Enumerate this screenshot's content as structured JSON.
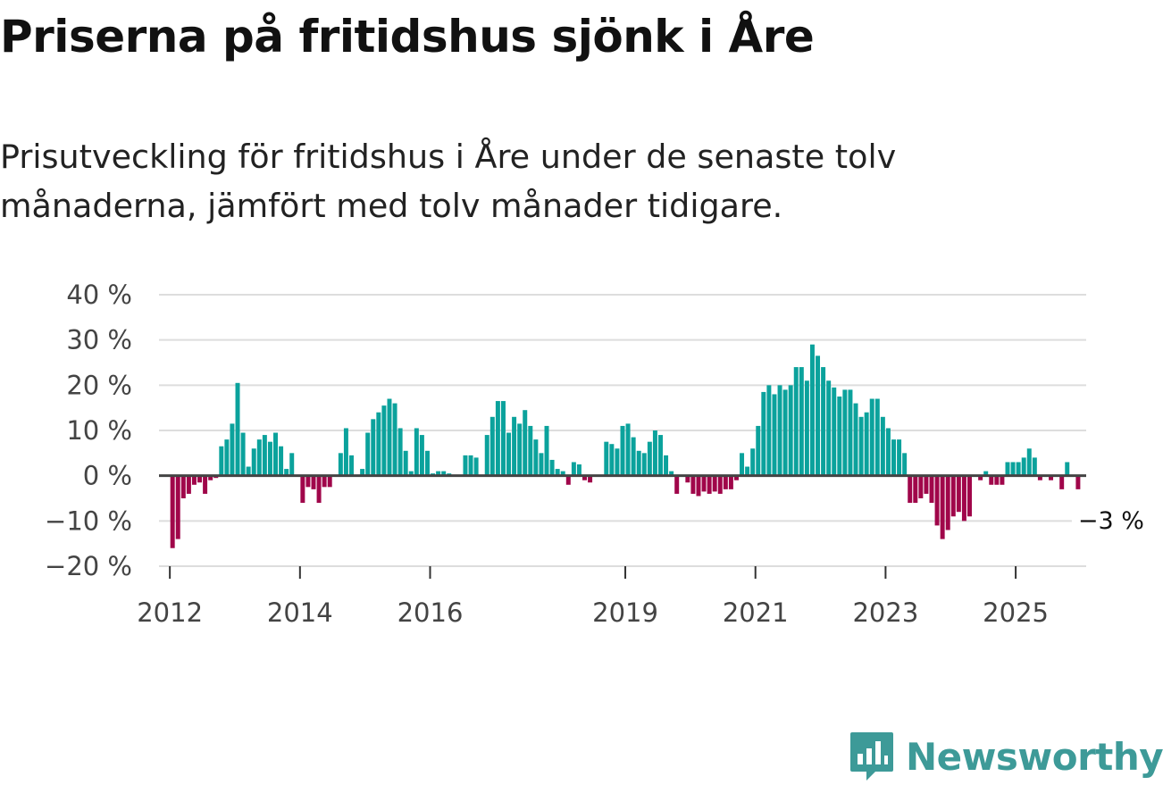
{
  "title": "Priserna på fritidshus sjönk i Åre",
  "subtitle": "Prisutveckling för fritidshus i Åre under de senaste tolv månaderna, jämfört med tolv månader tidigare.",
  "brand": {
    "name": "Newsworthy",
    "color": "#3d9a98",
    "icon": "newsworthy-logo-icon"
  },
  "colors": {
    "positive": "#0ba29c",
    "negative": "#a0064a",
    "grid": "#dddddd",
    "zero_line": "#444444"
  },
  "chart_data": {
    "type": "bar",
    "title": "Priserna på fritidshus sjönk i Åre",
    "xlabel": "",
    "ylabel": "",
    "ylim": [
      -20,
      40
    ],
    "y_ticks": [
      40,
      30,
      20,
      10,
      0,
      -10,
      -20
    ],
    "y_tick_labels": [
      "40 %",
      "30 %",
      "20 %",
      "10 %",
      "0 %",
      "−10 %",
      "−20 %"
    ],
    "x_start": "2011-11",
    "x_end": "2026-02",
    "x_tick_labels": [
      {
        "label": "2012",
        "month": "2012-01"
      },
      {
        "label": "2014",
        "month": "2014-01"
      },
      {
        "label": "2016",
        "month": "2016-01"
      },
      {
        "label": "2019",
        "month": "2019-01"
      },
      {
        "label": "2021",
        "month": "2021-01"
      },
      {
        "label": "2023",
        "month": "2023-01"
      },
      {
        "label": "2025",
        "month": "2025-01"
      }
    ],
    "annotation": {
      "label": "−3 %",
      "month": "2025-12",
      "value": -3
    },
    "unit": "%",
    "series": [
      {
        "name": "Prisutveckling",
        "values": [
          {
            "month": "2012-01",
            "value": -16
          },
          {
            "month": "2012-02",
            "value": -14
          },
          {
            "month": "2012-03",
            "value": -5
          },
          {
            "month": "2012-04",
            "value": -4
          },
          {
            "month": "2012-05",
            "value": -2
          },
          {
            "month": "2012-06",
            "value": -1.5
          },
          {
            "month": "2012-07",
            "value": -4
          },
          {
            "month": "2012-08",
            "value": -1
          },
          {
            "month": "2012-09",
            "value": -0.5
          },
          {
            "month": "2012-10",
            "value": 6.5
          },
          {
            "month": "2012-11",
            "value": 8
          },
          {
            "month": "2012-12",
            "value": 11.5
          },
          {
            "month": "2013-01",
            "value": 20.5
          },
          {
            "month": "2013-02",
            "value": 9.5
          },
          {
            "month": "2013-03",
            "value": 2
          },
          {
            "month": "2013-04",
            "value": 6
          },
          {
            "month": "2013-05",
            "value": 8
          },
          {
            "month": "2013-06",
            "value": 9
          },
          {
            "month": "2013-07",
            "value": 7.5
          },
          {
            "month": "2013-08",
            "value": 9.5
          },
          {
            "month": "2013-09",
            "value": 6.5
          },
          {
            "month": "2013-10",
            "value": 1.5
          },
          {
            "month": "2013-11",
            "value": 5
          },
          {
            "month": "2013-12",
            "value": 0
          },
          {
            "month": "2014-01",
            "value": -6
          },
          {
            "month": "2014-02",
            "value": -2.5
          },
          {
            "month": "2014-03",
            "value": -3
          },
          {
            "month": "2014-04",
            "value": -6
          },
          {
            "month": "2014-05",
            "value": -2.5
          },
          {
            "month": "2014-06",
            "value": -2.5
          },
          {
            "month": "2014-07",
            "value": 0
          },
          {
            "month": "2014-08",
            "value": 5
          },
          {
            "month": "2014-09",
            "value": 10.5
          },
          {
            "month": "2014-10",
            "value": 4.5
          },
          {
            "month": "2014-11",
            "value": 0
          },
          {
            "month": "2014-12",
            "value": 1.5
          },
          {
            "month": "2015-01",
            "value": 9.5
          },
          {
            "month": "2015-02",
            "value": 12.5
          },
          {
            "month": "2015-03",
            "value": 14
          },
          {
            "month": "2015-04",
            "value": 15.5
          },
          {
            "month": "2015-05",
            "value": 17
          },
          {
            "month": "2015-06",
            "value": 16
          },
          {
            "month": "2015-07",
            "value": 10.5
          },
          {
            "month": "2015-08",
            "value": 5.5
          },
          {
            "month": "2015-09",
            "value": 1
          },
          {
            "month": "2015-10",
            "value": 10.5
          },
          {
            "month": "2015-11",
            "value": 9
          },
          {
            "month": "2015-12",
            "value": 5.5
          },
          {
            "month": "2016-01",
            "value": 0.5
          },
          {
            "month": "2016-02",
            "value": 1
          },
          {
            "month": "2016-03",
            "value": 1
          },
          {
            "month": "2016-04",
            "value": 0.5
          },
          {
            "month": "2016-05",
            "value": 0
          },
          {
            "month": "2016-06",
            "value": 0
          },
          {
            "month": "2016-07",
            "value": 4.5
          },
          {
            "month": "2016-08",
            "value": 4.5
          },
          {
            "month": "2016-09",
            "value": 4
          },
          {
            "month": "2016-10",
            "value": 0
          },
          {
            "month": "2016-11",
            "value": 9
          },
          {
            "month": "2016-12",
            "value": 13
          },
          {
            "month": "2017-01",
            "value": 16.5
          },
          {
            "month": "2017-02",
            "value": 16.5
          },
          {
            "month": "2017-03",
            "value": 9.5
          },
          {
            "month": "2017-04",
            "value": 13
          },
          {
            "month": "2017-05",
            "value": 11.5
          },
          {
            "month": "2017-06",
            "value": 14.5
          },
          {
            "month": "2017-07",
            "value": 11
          },
          {
            "month": "2017-08",
            "value": 8
          },
          {
            "month": "2017-09",
            "value": 5
          },
          {
            "month": "2017-10",
            "value": 11
          },
          {
            "month": "2017-11",
            "value": 3.5
          },
          {
            "month": "2017-12",
            "value": 1.5
          },
          {
            "month": "2018-01",
            "value": 1
          },
          {
            "month": "2018-02",
            "value": -2
          },
          {
            "month": "2018-03",
            "value": 3
          },
          {
            "month": "2018-04",
            "value": 2.5
          },
          {
            "month": "2018-05",
            "value": -1
          },
          {
            "month": "2018-06",
            "value": -1.5
          },
          {
            "month": "2018-07",
            "value": 0
          },
          {
            "month": "2018-08",
            "value": 0
          },
          {
            "month": "2018-09",
            "value": 7.5
          },
          {
            "month": "2018-10",
            "value": 7
          },
          {
            "month": "2018-11",
            "value": 6
          },
          {
            "month": "2018-12",
            "value": 11
          },
          {
            "month": "2019-01",
            "value": 11.5
          },
          {
            "month": "2019-02",
            "value": 8.5
          },
          {
            "month": "2019-03",
            "value": 5.5
          },
          {
            "month": "2019-04",
            "value": 5
          },
          {
            "month": "2019-05",
            "value": 7.5
          },
          {
            "month": "2019-06",
            "value": 10
          },
          {
            "month": "2019-07",
            "value": 9
          },
          {
            "month": "2019-08",
            "value": 4.5
          },
          {
            "month": "2019-09",
            "value": 1
          },
          {
            "month": "2019-10",
            "value": -4
          },
          {
            "month": "2019-11",
            "value": 0
          },
          {
            "month": "2019-12",
            "value": -1.5
          },
          {
            "month": "2020-01",
            "value": -4
          },
          {
            "month": "2020-02",
            "value": -4.5
          },
          {
            "month": "2020-03",
            "value": -3.5
          },
          {
            "month": "2020-04",
            "value": -4
          },
          {
            "month": "2020-05",
            "value": -3.5
          },
          {
            "month": "2020-06",
            "value": -4
          },
          {
            "month": "2020-07",
            "value": -3
          },
          {
            "month": "2020-08",
            "value": -3
          },
          {
            "month": "2020-09",
            "value": -1
          },
          {
            "month": "2020-10",
            "value": 5
          },
          {
            "month": "2020-11",
            "value": 2
          },
          {
            "month": "2020-12",
            "value": 6
          },
          {
            "month": "2021-01",
            "value": 11
          },
          {
            "month": "2021-02",
            "value": 18.5
          },
          {
            "month": "2021-03",
            "value": 20
          },
          {
            "month": "2021-04",
            "value": 18
          },
          {
            "month": "2021-05",
            "value": 20
          },
          {
            "month": "2021-06",
            "value": 19
          },
          {
            "month": "2021-07",
            "value": 20
          },
          {
            "month": "2021-08",
            "value": 24
          },
          {
            "month": "2021-09",
            "value": 24
          },
          {
            "month": "2021-10",
            "value": 21
          },
          {
            "month": "2021-11",
            "value": 29
          },
          {
            "month": "2021-12",
            "value": 26.5
          },
          {
            "month": "2022-01",
            "value": 24
          },
          {
            "month": "2022-02",
            "value": 21
          },
          {
            "month": "2022-03",
            "value": 19.5
          },
          {
            "month": "2022-04",
            "value": 17.5
          },
          {
            "month": "2022-05",
            "value": 19
          },
          {
            "month": "2022-06",
            "value": 19
          },
          {
            "month": "2022-07",
            "value": 16
          },
          {
            "month": "2022-08",
            "value": 13
          },
          {
            "month": "2022-09",
            "value": 14
          },
          {
            "month": "2022-10",
            "value": 17
          },
          {
            "month": "2022-11",
            "value": 17
          },
          {
            "month": "2022-12",
            "value": 13
          },
          {
            "month": "2023-01",
            "value": 10.5
          },
          {
            "month": "2023-02",
            "value": 8
          },
          {
            "month": "2023-03",
            "value": 8
          },
          {
            "month": "2023-04",
            "value": 5
          },
          {
            "month": "2023-05",
            "value": -6
          },
          {
            "month": "2023-06",
            "value": -6
          },
          {
            "month": "2023-07",
            "value": -5
          },
          {
            "month": "2023-08",
            "value": -4
          },
          {
            "month": "2023-09",
            "value": -6
          },
          {
            "month": "2023-10",
            "value": -11
          },
          {
            "month": "2023-11",
            "value": -14
          },
          {
            "month": "2023-12",
            "value": -12
          },
          {
            "month": "2024-01",
            "value": -9
          },
          {
            "month": "2024-02",
            "value": -8
          },
          {
            "month": "2024-03",
            "value": -10
          },
          {
            "month": "2024-04",
            "value": -9
          },
          {
            "month": "2024-05",
            "value": 0
          },
          {
            "month": "2024-06",
            "value": -1
          },
          {
            "month": "2024-07",
            "value": 1
          },
          {
            "month": "2024-08",
            "value": -2
          },
          {
            "month": "2024-09",
            "value": -2
          },
          {
            "month": "2024-10",
            "value": -2
          },
          {
            "month": "2024-11",
            "value": 3
          },
          {
            "month": "2024-12",
            "value": 3
          },
          {
            "month": "2025-01",
            "value": 3
          },
          {
            "month": "2025-02",
            "value": 4
          },
          {
            "month": "2025-03",
            "value": 6
          },
          {
            "month": "2025-04",
            "value": 4
          },
          {
            "month": "2025-05",
            "value": -1
          },
          {
            "month": "2025-06",
            "value": 0
          },
          {
            "month": "2025-07",
            "value": -1
          },
          {
            "month": "2025-08",
            "value": 0
          },
          {
            "month": "2025-09",
            "value": -3
          },
          {
            "month": "2025-10",
            "value": 3
          },
          {
            "month": "2025-11",
            "value": 0
          },
          {
            "month": "2025-12",
            "value": -3
          }
        ]
      }
    ]
  }
}
